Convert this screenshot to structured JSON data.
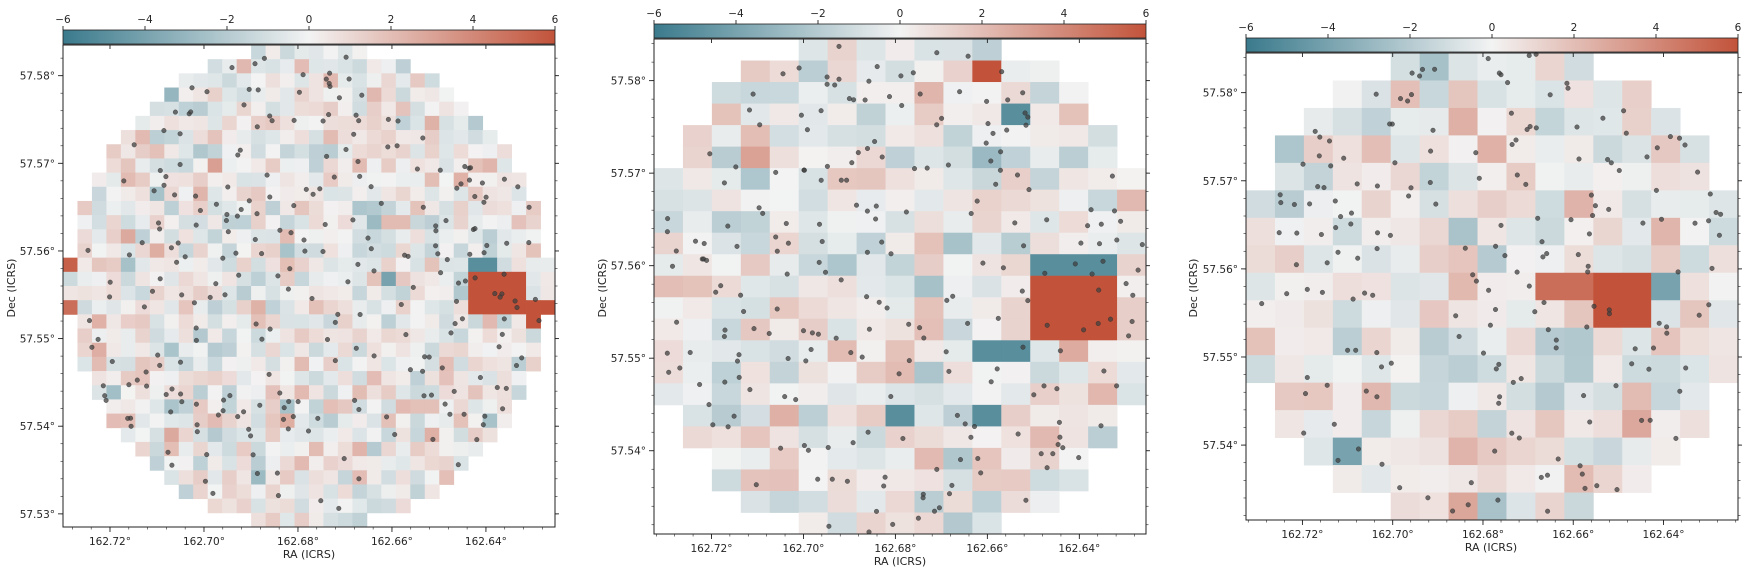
{
  "colormap": {
    "low": "#3a7a8c",
    "mid": "#f3f3f3",
    "high": "#c2533a"
  },
  "chart_data": [
    {
      "type": "heatmap",
      "title": "",
      "xlabel": "RA (ICRS)",
      "ylabel": "Dec (ICRS)",
      "xlim": [
        162.73,
        162.6253
      ],
      "ylim": [
        57.5285,
        57.5835
      ],
      "xticks": [
        162.72,
        162.7,
        162.68,
        162.66,
        162.64
      ],
      "xtick_labels": [
        "162.72°",
        "162.70°",
        "162.68°",
        "162.66°",
        "162.64°"
      ],
      "yticks": [
        57.58,
        57.57,
        57.56,
        57.55,
        57.54,
        57.53
      ],
      "ytick_labels": [
        "57.58°",
        "57.57°",
        "57.56°",
        "57.55°",
        "57.54°",
        "57.53°"
      ],
      "colorbar": {
        "vmin": -6,
        "vmax": 6,
        "location": "top",
        "ticks": [
          -6,
          -4,
          -2,
          0,
          2,
          4,
          6
        ],
        "tick_labels": [
          "−6",
          "−4",
          "−2",
          "0",
          "2",
          "4",
          "6"
        ]
      },
      "grid": {
        "nx": 34,
        "ny": 34,
        "mask_radius_frac": 0.5
      },
      "highlights": [
        {
          "ra_range": [
            162.6445,
            162.6315
          ],
          "dec_range": [
            57.552,
            57.5577
          ],
          "value": 6
        },
        {
          "ra_range": [
            162.63,
            162.6253
          ],
          "dec_range": [
            57.5515,
            57.5545
          ],
          "value": 6
        },
        {
          "ra_range": [
            162.73,
            162.727
          ],
          "dec_range": [
            57.5515,
            57.5545
          ],
          "value": 5
        },
        {
          "ra_range": [
            162.73,
            162.727
          ],
          "dec_range": [
            57.5577,
            57.5592
          ],
          "value": 5.5
        },
        {
          "ra_range": [
            162.7125,
            162.7095
          ],
          "dec_range": [
            57.5786,
            57.5817
          ],
          "value": 5.5
        },
        {
          "ra_range": [
            162.6425,
            162.6365
          ],
          "dec_range": [
            57.5578,
            57.5593
          ],
          "value": -5
        },
        {
          "ra_range": [
            162.6635,
            162.6605
          ],
          "dec_range": [
            57.5562,
            57.5578
          ],
          "value": -4
        }
      ],
      "points_count": 260,
      "seed": 11
    },
    {
      "type": "heatmap",
      "title": "",
      "xlabel": "RA (ICRS)",
      "ylabel": "Dec (ICRS)",
      "xlim": [
        162.7325,
        162.6255
      ],
      "ylim": [
        57.531,
        57.5845
      ],
      "xticks": [
        162.72,
        162.7,
        162.68,
        162.66,
        162.64
      ],
      "xtick_labels": [
        "162.72°",
        "162.70°",
        "162.68°",
        "162.66°",
        "162.64°"
      ],
      "yticks": [
        57.58,
        57.57,
        57.56,
        57.55,
        57.54
      ],
      "ytick_labels": [
        "57.58°",
        "57.57°",
        "57.56°",
        "57.55°",
        "57.54°"
      ],
      "colorbar": {
        "vmin": -6,
        "vmax": 6,
        "location": "top",
        "ticks": [
          -6,
          -4,
          -2,
          0,
          2,
          4,
          6
        ],
        "tick_labels": [
          "−6",
          "−4",
          "−2",
          "0",
          "2",
          "4",
          "6"
        ]
      },
      "grid": {
        "nx": 17,
        "ny": 23,
        "mask_radius_frac": 0.53
      },
      "highlights": [
        {
          "ra_range": [
            162.6515,
            162.6345
          ],
          "dec_range": [
            57.553,
            57.56
          ],
          "value": 6
        },
        {
          "ra_range": [
            162.6625,
            162.6565
          ],
          "dec_range": [
            57.5792,
            57.5815
          ],
          "value": 6
        },
        {
          "ra_range": [
            162.6515,
            162.6305
          ],
          "dec_range": [
            57.56,
            57.5623
          ],
          "value": -5
        },
        {
          "ra_range": [
            162.6625,
            162.6515
          ],
          "dec_range": [
            57.5485,
            57.553
          ],
          "value": -5
        },
        {
          "ra_range": [
            162.6565,
            162.6515
          ],
          "dec_range": [
            57.5745,
            57.577
          ],
          "value": -5
        },
        {
          "ra_range": [
            162.6825,
            162.6765
          ],
          "dec_range": [
            57.5415,
            57.544
          ],
          "value": -5
        },
        {
          "ra_range": [
            162.6625,
            162.6565
          ],
          "dec_range": [
            57.5415,
            57.544
          ],
          "value": -5
        }
      ],
      "points_count": 230,
      "seed": 23
    },
    {
      "type": "heatmap",
      "title": "",
      "xlabel": "RA (ICRS)",
      "ylabel": "Dec (ICRS)",
      "xlim": [
        162.7325,
        162.6235
      ],
      "ylim": [
        57.5315,
        57.5845
      ],
      "xticks": [
        162.72,
        162.7,
        162.68,
        162.66,
        162.64
      ],
      "xtick_labels": [
        "162.72°",
        "162.70°",
        "162.68°",
        "162.66°",
        "162.64°"
      ],
      "yticks": [
        57.58,
        57.57,
        57.56,
        57.55,
        57.54
      ],
      "ytick_labels": [
        "57.58°",
        "57.57°",
        "57.56°",
        "57.55°",
        "57.54°"
      ],
      "colorbar": {
        "vmin": -6,
        "vmax": 6,
        "location": "top",
        "ticks": [
          -6,
          -4,
          -2,
          0,
          2,
          4,
          6
        ],
        "tick_labels": [
          "−6",
          "−4",
          "−2",
          "0",
          "2",
          "4",
          "6"
        ]
      },
      "grid": {
        "nx": 17,
        "ny": 17,
        "mask_radius_frac": 0.53
      },
      "highlights": [
        {
          "ra_range": [
            162.6565,
            162.6445
          ],
          "dec_range": [
            57.5535,
            57.5595
          ],
          "value": 6
        },
        {
          "ra_range": [
            162.6665,
            162.6565
          ],
          "dec_range": [
            57.5565,
            57.5595
          ],
          "value": 5
        },
        {
          "ra_range": [
            162.6445,
            162.6385
          ],
          "dec_range": [
            57.5565,
            57.5595
          ],
          "value": -4
        },
        {
          "ra_range": [
            162.7125,
            162.7065
          ],
          "dec_range": [
            57.5385,
            57.5415
          ],
          "value": -4
        }
      ],
      "points_count": 190,
      "seed": 37
    }
  ]
}
